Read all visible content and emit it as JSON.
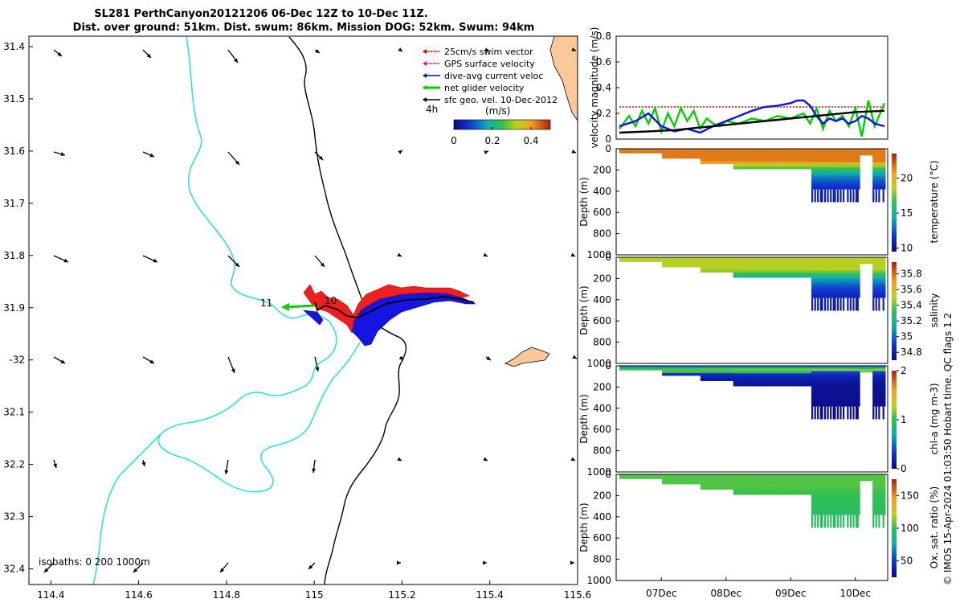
{
  "chart_data": [
    {
      "id": "map",
      "type": "map",
      "title_line1": "SL281 PerthCanyon20121206 06-Dec 12Z to 10-Dec 11Z.",
      "title_line2": "Dist. over ground: 51km. Dist. swum: 86km. Mission DOG: 52km. Swum: 94km",
      "xlim": [
        114.35,
        115.6
      ],
      "ylim": [
        31.38,
        32.43
      ],
      "x_ticks": [
        114.4,
        114.6,
        114.8,
        115,
        115.2,
        115.4,
        115.6
      ],
      "x_tick_labels": [
        "114.4",
        "114.6",
        "114.8",
        "115",
        "115.2",
        "115.4",
        "115.6"
      ],
      "y_ticks": [
        31.4,
        31.5,
        31.6,
        31.7,
        31.8,
        31.9,
        32.0,
        32.1,
        32.2,
        32.3,
        32.4
      ],
      "y_tick_labels": [
        "31.4",
        "31.5",
        "31.6",
        "31.7",
        "31.8",
        "31.9",
        "-32",
        "32.1",
        "32.2",
        "32.3",
        "32.4"
      ],
      "legend": [
        {
          "label": "25cm/s swim vector",
          "color": "#e00000"
        },
        {
          "label": "GPS surface velocity",
          "color": "#e000e0"
        },
        {
          "label": "dive-avg current veloc",
          "color": "#0000e0"
        },
        {
          "label": "net glider velocity",
          "color": "#00d000"
        },
        {
          "label": "sfc geo. vel. 10-Dec-2012",
          "color": "#000000"
        }
      ],
      "legend_placement": "top-right",
      "scale_label": "4h",
      "colorbar_title": "(m/s)",
      "colorbar_ticks": [
        "0",
        "0.2",
        "0.4"
      ],
      "colorbar_range": [
        0,
        0.5
      ],
      "isobath_note": "isobaths: 0   200  1000m",
      "annotations": [
        "11",
        "10"
      ]
    },
    {
      "id": "velocity",
      "type": "line",
      "ylabel": "velocity magnitude (m/s)",
      "xlim": [
        6.3,
        10.5
      ],
      "ylim": [
        0,
        0.8
      ],
      "y_ticks": [
        "0",
        "0.2",
        "0.4",
        "0.6",
        "0.8"
      ],
      "series": [
        {
          "name": "swim",
          "color": "#e00000",
          "style": "dotted",
          "x": [
            6.35,
            10.45
          ],
          "y": [
            0.25,
            0.25
          ]
        },
        {
          "name": "net glider velocity",
          "color": "#00d000",
          "x": [
            6.35,
            6.5,
            6.6,
            6.7,
            6.8,
            6.9,
            7.0,
            7.1,
            7.2,
            7.3,
            7.4,
            7.5,
            7.6,
            7.7,
            7.8,
            7.9,
            8.0,
            8.2,
            8.4,
            8.6,
            8.8,
            9.0,
            9.2,
            9.3,
            9.4,
            9.5,
            9.6,
            9.7,
            9.8,
            9.9,
            10.0,
            10.1,
            10.2,
            10.3,
            10.45
          ],
          "y": [
            0.08,
            0.18,
            0.1,
            0.22,
            0.12,
            0.24,
            0.06,
            0.2,
            0.1,
            0.24,
            0.14,
            0.22,
            0.08,
            0.16,
            0.12,
            0.1,
            0.14,
            0.12,
            0.16,
            0.14,
            0.18,
            0.16,
            0.2,
            0.12,
            0.24,
            0.08,
            0.22,
            0.14,
            0.18,
            0.1,
            0.24,
            0.02,
            0.3,
            0.1,
            0.28
          ]
        },
        {
          "name": "dive-avg current",
          "color": "#1010e0",
          "x": [
            6.35,
            6.6,
            6.8,
            7.0,
            7.2,
            7.4,
            7.6,
            7.8,
            8.0,
            8.2,
            8.4,
            8.6,
            8.8,
            9.0,
            9.1,
            9.2,
            9.3,
            9.4,
            9.5,
            9.6,
            9.7,
            9.8,
            9.9,
            10.0,
            10.1,
            10.2,
            10.3,
            10.45
          ],
          "y": [
            0.1,
            0.14,
            0.2,
            0.1,
            0.06,
            0.08,
            0.05,
            0.1,
            0.14,
            0.18,
            0.22,
            0.25,
            0.26,
            0.28,
            0.3,
            0.3,
            0.26,
            0.18,
            0.12,
            0.16,
            0.14,
            0.16,
            0.12,
            0.14,
            0.18,
            0.16,
            0.12,
            0.1
          ]
        },
        {
          "name": "surface geostrophic",
          "color": "#000000",
          "x": [
            6.35,
            6.8,
            7.2,
            7.6,
            8.0,
            8.4,
            8.8,
            9.2,
            9.6,
            10.0,
            10.45
          ],
          "y": [
            0.05,
            0.06,
            0.07,
            0.09,
            0.11,
            0.13,
            0.15,
            0.17,
            0.19,
            0.21,
            0.22
          ]
        }
      ]
    },
    {
      "id": "temperature",
      "type": "heatmap",
      "ylabel": "Depth (m)",
      "colorbar_label": "temperature (°C)",
      "colorbar_ticks": [
        "10",
        "15",
        "20"
      ],
      "colorbar_range": [
        9.5,
        23.5
      ],
      "y_ticks": [
        "0",
        "200",
        "400",
        "600",
        "800",
        "1000"
      ],
      "ylim": [
        1000,
        0
      ],
      "surface_value": 21.5,
      "deep_value": 10,
      "is_chl": false
    },
    {
      "id": "salinity",
      "type": "heatmap",
      "ylabel": "Depth (m)",
      "colorbar_label": "salinity",
      "colorbar_ticks": [
        "34.8",
        "35",
        "35.2",
        "35.4",
        "35.6",
        "35.8"
      ],
      "colorbar_range": [
        34.7,
        35.95
      ],
      "y_ticks": [
        "0",
        "200",
        "400",
        "600",
        "800",
        "1000"
      ],
      "ylim": [
        1000,
        0
      ],
      "surface_value": 35.5,
      "deep_value": 34.75,
      "is_chl": false
    },
    {
      "id": "chlorophyll",
      "type": "heatmap",
      "ylabel": "Depth (m)",
      "colorbar_label": "chl-a (mg m-3)",
      "colorbar_ticks": [
        "0",
        "1",
        "2"
      ],
      "colorbar_range": [
        0,
        2
      ],
      "y_ticks": [
        "0",
        "200",
        "400",
        "600",
        "800",
        "1000"
      ],
      "ylim": [
        1000,
        0
      ],
      "surface_value": 0.6,
      "deep_value": 0.05,
      "is_chl": true
    },
    {
      "id": "oxygen",
      "type": "heatmap",
      "ylabel": "Depth (m)",
      "colorbar_label": "Ox. sat. ratio (%)",
      "colorbar_ticks": [
        "50",
        "100",
        "150"
      ],
      "colorbar_range": [
        25,
        175
      ],
      "y_ticks": [
        "0",
        "200",
        "400",
        "600",
        "800",
        "1000"
      ],
      "ylim": [
        1000,
        0
      ],
      "surface_value": 105,
      "deep_value": 95,
      "is_chl": false
    }
  ],
  "time_axis": {
    "labels": [
      "07Dec",
      "08Dec",
      "09Dec",
      "10Dec"
    ],
    "values": [
      7,
      8,
      9,
      10
    ]
  },
  "side_note": "© IMOS 15-Apr-2024 01:03:50 Hobart time. QC flags 1  2"
}
